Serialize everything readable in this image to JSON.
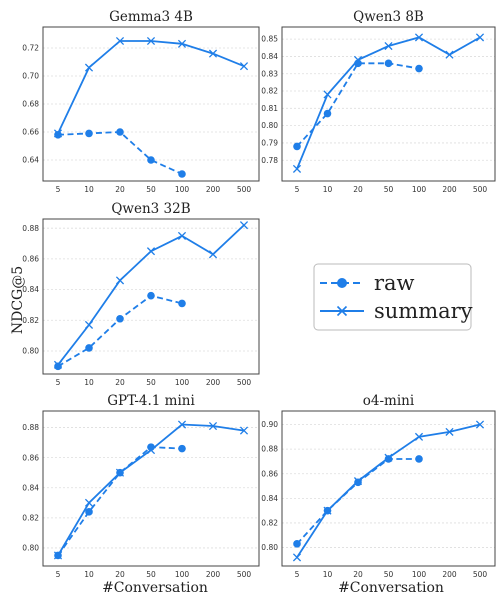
{
  "figure": {
    "ylabel": "NDCG@5",
    "xlabel": "#Conversation"
  },
  "legend": {
    "items": [
      {
        "label": "raw",
        "style": "dashed",
        "marker": "circle"
      },
      {
        "label": "summary",
        "style": "solid",
        "marker": "x"
      }
    ]
  },
  "colors": {
    "series": "#1f7ee8",
    "grid": "#dddddd",
    "frame": "#444444"
  },
  "chart_data": [
    {
      "type": "line",
      "title": "Gemma3 4B",
      "categories": [
        "5",
        "10",
        "20",
        "50",
        "100",
        "200",
        "500"
      ],
      "ylim": [
        0.625,
        0.735
      ],
      "yticks": [
        "0.64",
        "0.66",
        "0.68",
        "0.70",
        "0.72"
      ],
      "series": [
        {
          "name": "raw",
          "values": [
            0.658,
            0.659,
            0.66,
            0.64,
            0.63,
            null,
            null
          ]
        },
        {
          "name": "summary",
          "values": [
            0.659,
            0.706,
            0.725,
            0.725,
            0.723,
            0.716,
            0.707
          ]
        }
      ],
      "xlabel": "",
      "grid": true
    },
    {
      "type": "line",
      "title": "Qwen3 8B",
      "categories": [
        "5",
        "10",
        "20",
        "50",
        "100",
        "200",
        "500"
      ],
      "ylim": [
        0.768,
        0.857
      ],
      "yticks": [
        "0.78",
        "0.79",
        "0.80",
        "0.81",
        "0.82",
        "0.83",
        "0.84",
        "0.85"
      ],
      "series": [
        {
          "name": "raw",
          "values": [
            0.788,
            0.807,
            0.836,
            0.836,
            0.833,
            null,
            null
          ]
        },
        {
          "name": "summary",
          "values": [
            0.775,
            0.818,
            0.838,
            0.846,
            0.851,
            0.841,
            0.851
          ]
        }
      ],
      "xlabel": "",
      "grid": true
    },
    {
      "type": "line",
      "title": "Qwen3 32B",
      "categories": [
        "5",
        "10",
        "20",
        "50",
        "100",
        "200",
        "500"
      ],
      "ylim": [
        0.785,
        0.886
      ],
      "yticks": [
        "0.80",
        "0.82",
        "0.84",
        "0.86",
        "0.88"
      ],
      "series": [
        {
          "name": "raw",
          "values": [
            0.79,
            0.802,
            0.821,
            0.836,
            0.831,
            null,
            null
          ]
        },
        {
          "name": "summary",
          "values": [
            0.791,
            0.817,
            0.846,
            0.865,
            0.875,
            0.863,
            0.882
          ]
        }
      ],
      "xlabel": "",
      "grid": true
    },
    {
      "type": "line",
      "title": "GPT-4.1 mini",
      "categories": [
        "5",
        "10",
        "20",
        "50",
        "100",
        "200",
        "500"
      ],
      "ylim": [
        0.788,
        0.891
      ],
      "yticks": [
        "0.80",
        "0.82",
        "0.84",
        "0.86",
        "0.88"
      ],
      "series": [
        {
          "name": "raw",
          "values": [
            0.795,
            0.824,
            0.85,
            0.867,
            0.866,
            null,
            null
          ]
        },
        {
          "name": "summary",
          "values": [
            0.795,
            0.83,
            0.85,
            0.865,
            0.882,
            0.881,
            0.878
          ]
        }
      ],
      "xlabel": "#Conversation",
      "grid": true
    },
    {
      "type": "line",
      "title": "o4-mini",
      "categories": [
        "5",
        "10",
        "20",
        "50",
        "100",
        "200",
        "500"
      ],
      "ylim": [
        0.785,
        0.911
      ],
      "yticks": [
        "0.80",
        "0.82",
        "0.84",
        "0.86",
        "0.88",
        "0.90"
      ],
      "series": [
        {
          "name": "raw",
          "values": [
            0.803,
            0.83,
            0.853,
            0.872,
            0.872,
            null,
            null
          ]
        },
        {
          "name": "summary",
          "values": [
            0.792,
            0.83,
            0.854,
            0.873,
            0.89,
            0.894,
            0.9
          ]
        }
      ],
      "xlabel": "#Conversation",
      "grid": true
    }
  ]
}
